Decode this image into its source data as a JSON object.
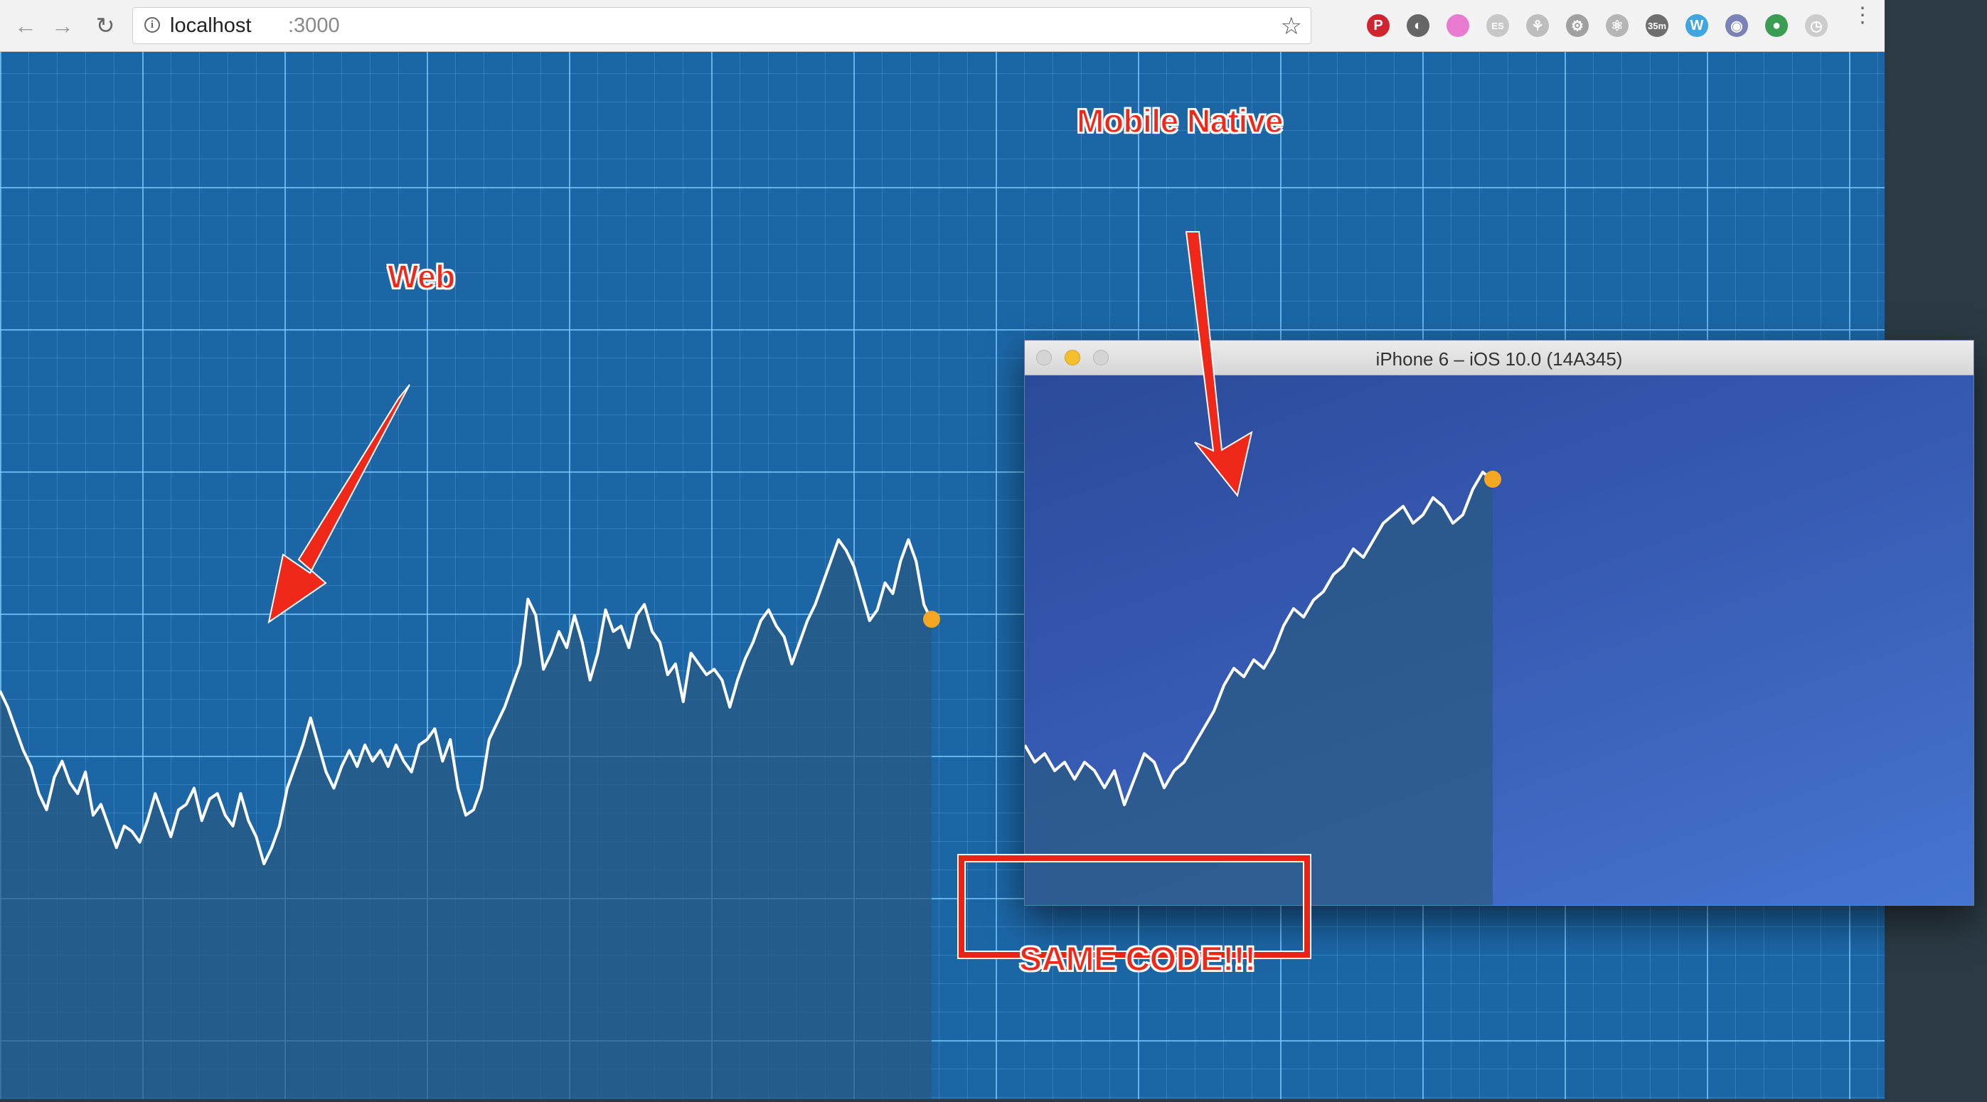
{
  "browser": {
    "url_host": "localhost",
    "url_port": ":3000",
    "extensions": [
      {
        "name": "pinterest-icon",
        "color": "#d0242e",
        "glyph": "P"
      },
      {
        "name": "feedly-icon",
        "color": "#666666",
        "glyph": "◐"
      },
      {
        "name": "gradient-icon",
        "color": "#e87bd0",
        "glyph": ""
      },
      {
        "name": "es-icon",
        "color": "#c7c7c7",
        "glyph": "ES"
      },
      {
        "name": "tree-icon",
        "color": "#bdbdbd",
        "glyph": "⚘"
      },
      {
        "name": "settings-icon",
        "color": "#a0a0a0",
        "glyph": "⚙"
      },
      {
        "name": "react-icon",
        "color": "#b5b5b5",
        "glyph": "⚛"
      },
      {
        "name": "timer-icon",
        "color": "#6f6f6f",
        "glyph": "35m"
      },
      {
        "name": "w-icon",
        "color": "#3fa6e0",
        "glyph": "W"
      },
      {
        "name": "ghost-icon",
        "color": "#7a82b8",
        "glyph": "◉"
      },
      {
        "name": "globe-icon",
        "color": "#3b9c54",
        "glyph": "●"
      },
      {
        "name": "clock-icon",
        "color": "#cccccc",
        "glyph": "◷"
      }
    ]
  },
  "annotations": {
    "web": "Web",
    "mobile": "Mobile Native",
    "same_code": "SAME CODE!!!"
  },
  "simulator": {
    "title": "iPhone 6 – iOS 10.0 (14A345)"
  },
  "colors": {
    "line": "#ffffff",
    "dot": "#f5a623",
    "area": "rgba(40,90,130,0.72)",
    "annotation": "#f0281a"
  },
  "chart_data": [
    {
      "type": "area",
      "name": "web",
      "values": [
        62,
        59,
        55,
        51,
        48,
        43,
        40,
        46,
        49,
        45,
        43,
        47,
        39,
        41,
        37,
        33,
        37,
        36,
        34,
        38,
        43,
        39,
        35,
        40,
        41,
        44,
        38,
        42,
        43,
        39,
        37,
        43,
        38,
        35,
        30,
        33,
        37,
        44,
        48,
        52,
        57,
        52,
        47,
        44,
        48,
        51,
        48,
        52,
        49,
        51,
        48,
        52,
        49,
        47,
        52,
        53,
        55,
        49,
        53,
        44,
        39,
        40,
        44,
        53,
        56,
        59,
        63,
        67,
        79,
        76,
        66,
        69,
        73,
        70,
        76,
        71,
        64,
        69,
        77,
        73,
        74,
        70,
        76,
        78,
        73,
        71,
        65,
        67,
        60,
        69,
        67,
        65,
        66,
        64,
        59,
        64,
        68,
        71,
        75,
        77,
        74,
        72,
        67,
        71,
        75,
        78,
        82,
        86,
        90,
        88,
        85,
        80,
        75,
        77,
        82,
        80,
        86,
        90,
        86,
        78,
        75
      ],
      "ylim": [
        0,
        100
      ]
    },
    {
      "type": "area",
      "name": "mobile",
      "values": [
        40,
        38,
        39,
        37,
        38,
        36,
        38,
        37,
        35,
        37,
        33,
        36,
        39,
        38,
        35,
        37,
        38,
        40,
        42,
        44,
        47,
        49,
        48,
        50,
        49,
        51,
        54,
        56,
        55,
        57,
        58,
        60,
        61,
        63,
        62,
        64,
        66,
        67,
        68,
        66,
        67,
        69,
        68,
        66,
        67,
        70,
        72,
        71
      ],
      "ylim": [
        0,
        100
      ]
    }
  ]
}
